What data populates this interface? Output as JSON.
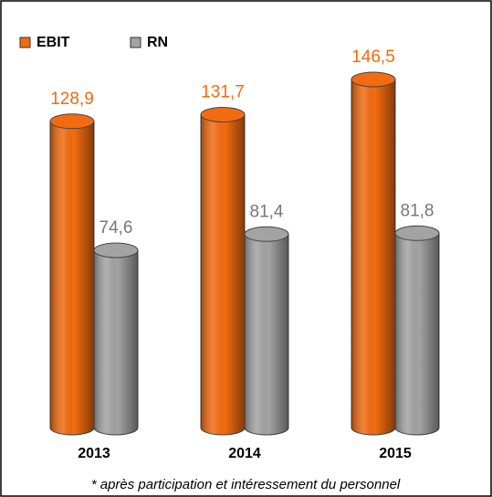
{
  "chart_data": {
    "type": "bar3d",
    "categories": [
      "2013",
      "2014",
      "2015"
    ],
    "series": [
      {
        "name": "EBIT",
        "color": "#f26b10",
        "values": [
          128.9,
          131.7,
          146.5
        ],
        "value_labels": [
          "128,9",
          "131,7",
          "146,5"
        ]
      },
      {
        "name": "RN",
        "color": "#a3a3a3",
        "values": [
          74.6,
          81.4,
          81.8
        ],
        "value_labels": [
          "74,6",
          "81,4",
          "81,8"
        ]
      }
    ],
    "footnote": "* après participation et intéressement du personnel"
  }
}
